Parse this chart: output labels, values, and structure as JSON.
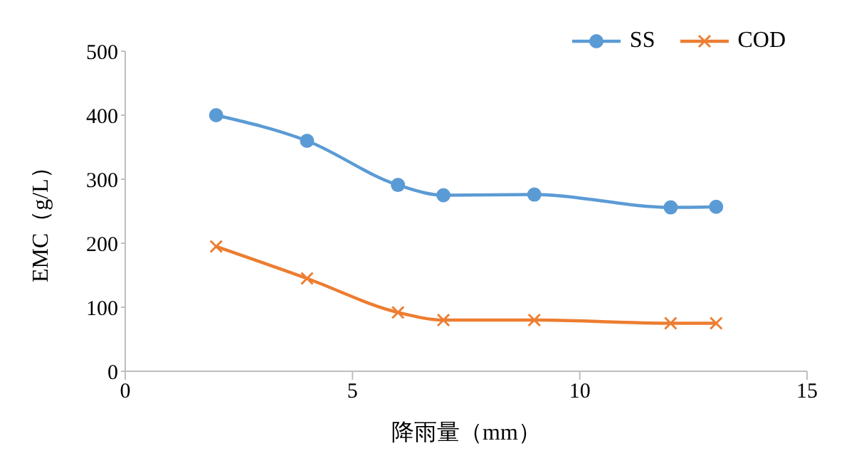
{
  "chart_data": {
    "type": "line",
    "xlabel": "降雨量（mm）",
    "ylabel": "EMC（g/L）",
    "x": [
      2,
      4,
      6,
      7,
      9,
      12,
      13
    ],
    "series": [
      {
        "name": "SS",
        "color": "#5b9bd5",
        "marker": "circle",
        "values": [
          400,
          360,
          291,
          275,
          276,
          256,
          257
        ]
      },
      {
        "name": "COD",
        "color": "#ed7d31",
        "marker": "cross",
        "values": [
          195,
          145,
          92,
          80,
          80,
          75,
          75
        ]
      }
    ],
    "xlim": [
      0,
      15
    ],
    "xticks": [
      0,
      5,
      10,
      15
    ],
    "ylim": [
      0,
      500
    ],
    "yticks": [
      0,
      100,
      200,
      300,
      400,
      500
    ],
    "grid": false,
    "legend": "top right"
  }
}
